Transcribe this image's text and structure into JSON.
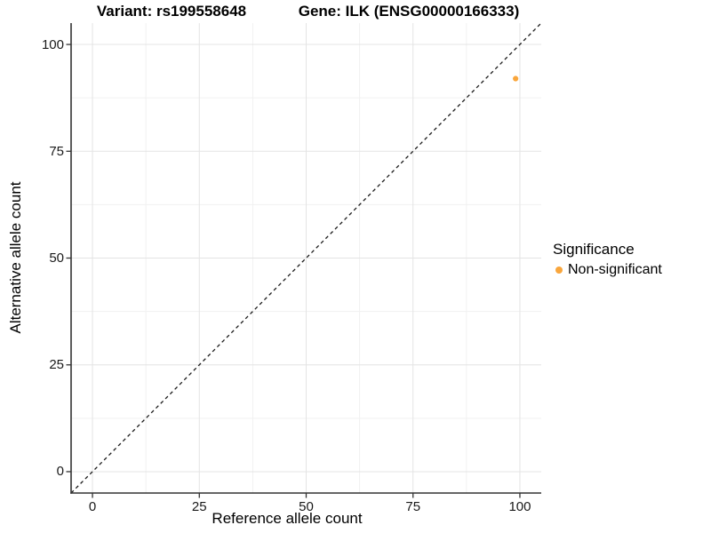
{
  "chart_data": {
    "type": "scatter",
    "title_left": "Variant: rs199558648",
    "title_right": "Gene: ILK (ENSG00000166333)",
    "xlabel": "Reference allele count",
    "ylabel": "Alternative allele count",
    "xlim": [
      -5,
      105
    ],
    "ylim": [
      -5,
      105
    ],
    "x_ticks": [
      0,
      25,
      50,
      75,
      100
    ],
    "y_ticks": [
      0,
      25,
      50,
      75,
      100
    ],
    "x_minor_ticks": [
      12.5,
      37.5,
      62.5,
      87.5
    ],
    "y_minor_ticks": [
      12.5,
      37.5,
      62.5,
      87.5
    ],
    "grid": true,
    "series": [
      {
        "name": "Non-significant",
        "color": "#F9A63C",
        "points": [
          {
            "x": 99,
            "y": 92
          }
        ]
      }
    ],
    "reference_line": {
      "kind": "identity y = x",
      "style": "dashed",
      "color": "#1A1A1A"
    },
    "legend": {
      "title": "Significance",
      "position": "right",
      "entries": [
        {
          "label": "Non-significant",
          "color": "#F9A63C"
        }
      ]
    },
    "colors": {
      "grid_major": "#E4E4E4",
      "grid_minor": "#F1F1F1",
      "axis_line": "#333333",
      "point": "#F9A63C",
      "background": "#FFFFFF"
    }
  }
}
